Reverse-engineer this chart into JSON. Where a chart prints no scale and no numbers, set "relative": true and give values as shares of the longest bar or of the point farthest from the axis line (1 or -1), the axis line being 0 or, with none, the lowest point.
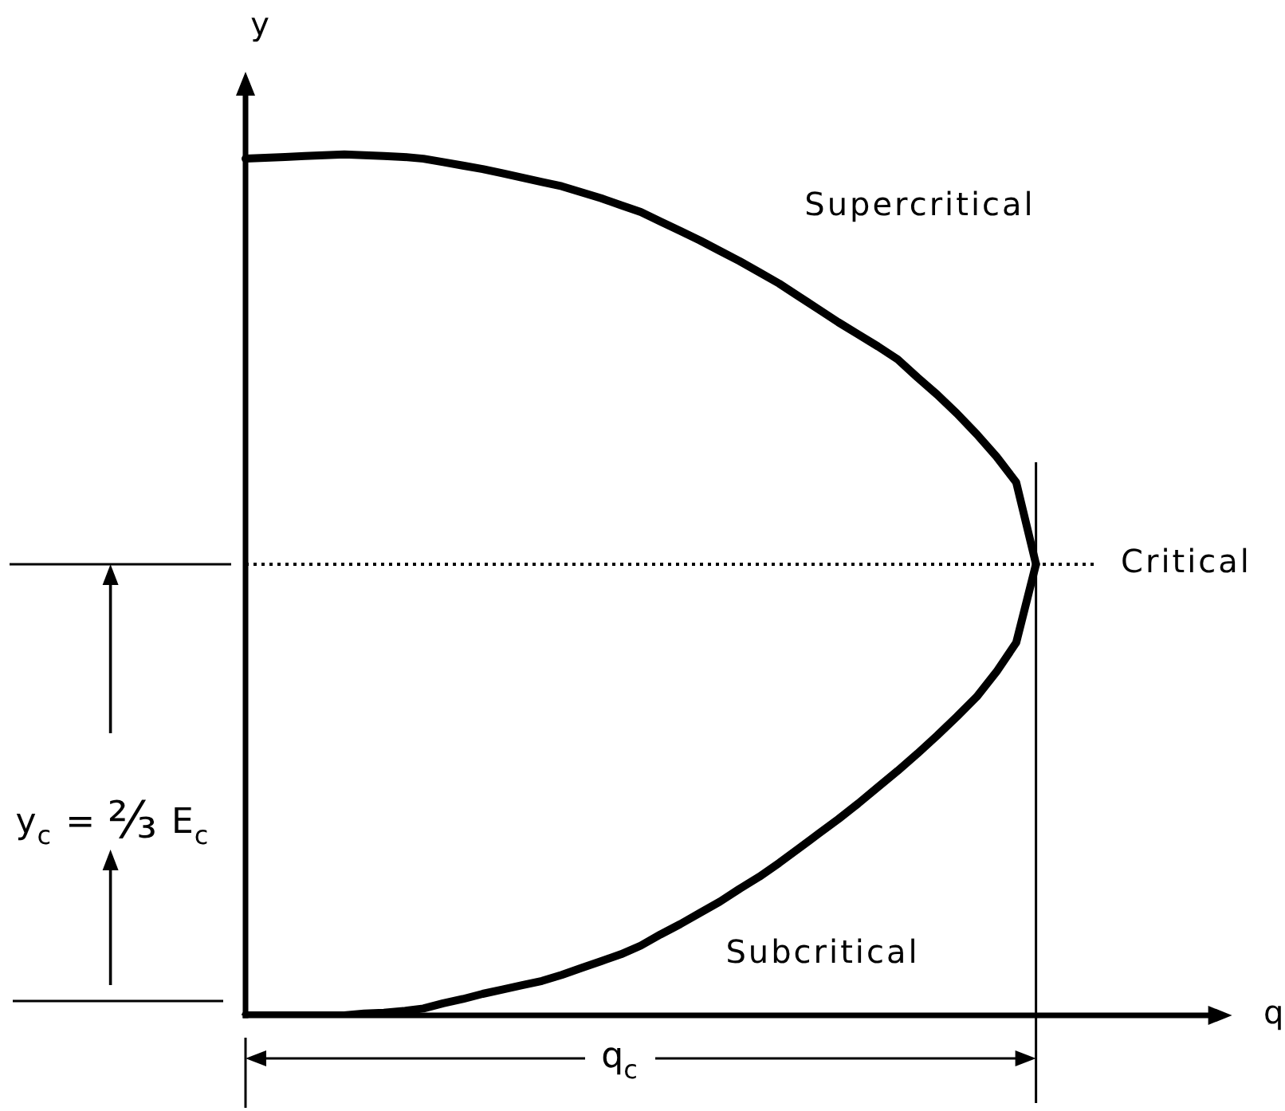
{
  "chart_data": {
    "type": "line",
    "relative": true,
    "xlabel": "q",
    "ylabel": "y",
    "marker": "none",
    "legend": false,
    "categories": [
      null,
      null,
      null,
      null,
      null,
      null,
      null,
      null,
      null,
      null,
      null,
      null,
      null,
      null,
      null,
      null,
      null,
      null,
      null,
      null,
      null,
      null,
      null,
      null,
      null,
      null,
      null,
      null,
      null,
      null,
      null,
      null,
      null,
      null,
      null,
      null,
      null,
      null,
      null,
      null,
      null,
      null,
      null,
      null
    ],
    "series": [
      {
        "color": "#000000",
        "line_style": "solid",
        "values": [
          0.995,
          0.996,
          0.997,
          0.998,
          0.999,
          1,
          0.999,
          0.998,
          0.997,
          0.995,
          0.991,
          0.987,
          0.983,
          0.978,
          0.973,
          0.968,
          0.963,
          0.956,
          0.949,
          0.941,
          0.933,
          0.922,
          0.911,
          0.9,
          0.888,
          0.876,
          0.863,
          0.85,
          0.835,
          0.82,
          0.805,
          0.791,
          0.777,
          0.762,
          0.741,
          0.721,
          0.699,
          0.675,
          0.649,
          0.619,
          0.524,
          null,
          null,
          null
        ]
      },
      {
        "color": "#000000",
        "line_style": "solid",
        "values": [
          0,
          0,
          0,
          0,
          0,
          0,
          0.002,
          0.003,
          0.005,
          0.008,
          0.014,
          0.019,
          0.025,
          0.03,
          0.035,
          0.04,
          0.047,
          0.055,
          0.063,
          0.071,
          0.081,
          0.094,
          0.106,
          0.119,
          0.132,
          0.147,
          0.161,
          0.177,
          0.194,
          0.211,
          0.228,
          0.246,
          0.265,
          0.284,
          0.304,
          0.325,
          0.347,
          0.37,
          0.399,
          0.433,
          0.524,
          null,
          null,
          null
        ]
      },
      {
        "name": "Critical",
        "color": "#000000",
        "line_style": "dotted",
        "values": [
          0.524,
          0.524,
          0.524,
          0.524,
          0.524,
          0.524,
          0.524,
          0.524,
          0.524,
          0.524,
          0.524,
          0.524,
          0.524,
          0.524,
          0.524,
          0.524,
          0.524,
          0.524,
          0.524,
          0.524,
          0.524,
          0.524,
          0.524,
          0.524,
          0.524,
          0.524,
          0.524,
          0.524,
          0.524,
          0.524,
          0.524,
          0.524,
          0.524,
          0.524,
          0.524,
          0.524,
          0.524,
          0.524,
          0.524,
          0.524,
          0.524,
          0.524,
          0.524,
          0.524
        ]
      }
    ],
    "annotations": [
      "Supercritical",
      "Subcritical",
      "y$_{c}$ = ⅔ E$_{c}$",
      "q$_{c}$"
    ]
  }
}
